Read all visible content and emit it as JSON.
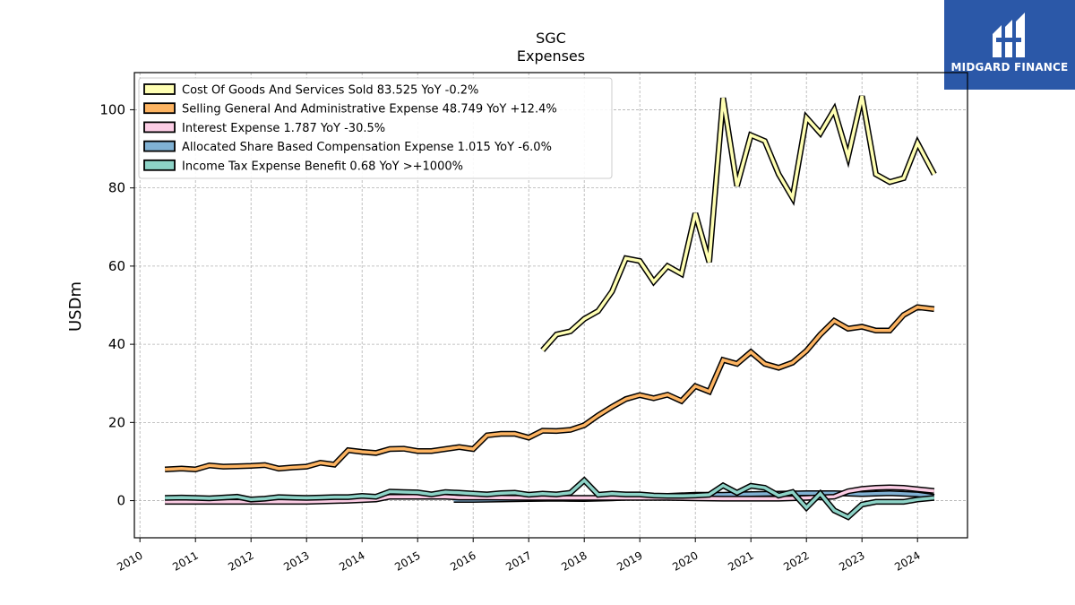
{
  "brand": {
    "name": "MIDGARD FINANCE",
    "bg_color": "#2b58a8"
  },
  "chart_data": {
    "type": "line",
    "title": "SGC",
    "subtitle": "Expenses",
    "xlabel": "",
    "ylabel": "USDm",
    "xlim": [
      2009.9,
      2024.9
    ],
    "ylim": [
      -9.5,
      109.5
    ],
    "x_ticks": [
      "2010",
      "2011",
      "2012",
      "2013",
      "2014",
      "2015",
      "2016",
      "2017",
      "2018",
      "2019",
      "2020",
      "2021",
      "2022",
      "2023",
      "2024"
    ],
    "y_ticks": [
      "0",
      "20",
      "40",
      "60",
      "80",
      "100"
    ],
    "grid": true,
    "legend_position": "top-left",
    "series": [
      {
        "name": "Cost Of Goods And Services Sold",
        "legend": "Cost Of Goods And Services Sold  83.525 YoY -0.2%",
        "color": "#ffffb3",
        "points": [
          [
            2017.25,
            38.5
          ],
          [
            2017.5,
            42.5
          ],
          [
            2017.75,
            43.3
          ],
          [
            2018.0,
            46.5
          ],
          [
            2018.25,
            48.5
          ],
          [
            2018.5,
            53.5
          ],
          [
            2018.75,
            62.0
          ],
          [
            2019.0,
            61.3
          ],
          [
            2019.25,
            56.0
          ],
          [
            2019.5,
            60.0
          ],
          [
            2019.75,
            58.0
          ],
          [
            2020.0,
            73.5
          ],
          [
            2020.25,
            61.0
          ],
          [
            2020.5,
            103.0
          ],
          [
            2020.75,
            80.5
          ],
          [
            2021.0,
            93.5
          ],
          [
            2021.25,
            92.0
          ],
          [
            2021.5,
            83.5
          ],
          [
            2021.75,
            77.5
          ],
          [
            2022.0,
            98.0
          ],
          [
            2022.25,
            94.0
          ],
          [
            2022.5,
            100.0
          ],
          [
            2022.75,
            88.0
          ],
          [
            2023.0,
            103.5
          ],
          [
            2023.25,
            83.5
          ],
          [
            2023.5,
            81.5
          ],
          [
            2023.75,
            82.5
          ],
          [
            2024.0,
            91.5
          ],
          [
            2024.3,
            83.5
          ]
        ]
      },
      {
        "name": "Selling General And Administrative Expense",
        "legend": "Selling General And Administrative Expense  48.749 YoY +12.4%",
        "color": "#fdb462",
        "points": [
          [
            2010.45,
            8.0
          ],
          [
            2010.75,
            8.2
          ],
          [
            2011.0,
            8.0
          ],
          [
            2011.25,
            9.0
          ],
          [
            2011.5,
            8.7
          ],
          [
            2011.75,
            8.8
          ],
          [
            2012.0,
            8.9
          ],
          [
            2012.25,
            9.1
          ],
          [
            2012.5,
            8.2
          ],
          [
            2012.75,
            8.5
          ],
          [
            2013.0,
            8.7
          ],
          [
            2013.25,
            9.7
          ],
          [
            2013.5,
            9.2
          ],
          [
            2013.75,
            12.9
          ],
          [
            2014.0,
            12.5
          ],
          [
            2014.25,
            12.2
          ],
          [
            2014.5,
            13.2
          ],
          [
            2014.75,
            13.3
          ],
          [
            2015.0,
            12.7
          ],
          [
            2015.25,
            12.7
          ],
          [
            2015.5,
            13.2
          ],
          [
            2015.75,
            13.7
          ],
          [
            2016.0,
            13.2
          ],
          [
            2016.25,
            16.7
          ],
          [
            2016.5,
            17.1
          ],
          [
            2016.75,
            17.1
          ],
          [
            2017.0,
            16.1
          ],
          [
            2017.25,
            17.9
          ],
          [
            2017.5,
            17.8
          ],
          [
            2017.75,
            18.1
          ],
          [
            2018.0,
            19.3
          ],
          [
            2018.25,
            21.8
          ],
          [
            2018.5,
            24.0
          ],
          [
            2018.75,
            26.0
          ],
          [
            2019.0,
            27.0
          ],
          [
            2019.25,
            26.2
          ],
          [
            2019.5,
            27.1
          ],
          [
            2019.75,
            25.5
          ],
          [
            2020.0,
            29.3
          ],
          [
            2020.25,
            27.9
          ],
          [
            2020.5,
            36.0
          ],
          [
            2020.75,
            35.0
          ],
          [
            2021.0,
            38.0
          ],
          [
            2021.25,
            35.0
          ],
          [
            2021.5,
            34.0
          ],
          [
            2021.75,
            35.3
          ],
          [
            2022.0,
            38.3
          ],
          [
            2022.25,
            42.5
          ],
          [
            2022.5,
            46.0
          ],
          [
            2022.75,
            44.0
          ],
          [
            2023.0,
            44.5
          ],
          [
            2023.25,
            43.5
          ],
          [
            2023.5,
            43.5
          ],
          [
            2023.75,
            47.5
          ],
          [
            2024.0,
            49.5
          ],
          [
            2024.3,
            49.0
          ]
        ]
      },
      {
        "name": "Interest Expense",
        "legend": "Interest Expense  1.787 YoY -30.5%",
        "color": "#fccde5",
        "points": [
          [
            2010.45,
            -0.3
          ],
          [
            2011.0,
            -0.3
          ],
          [
            2012.0,
            -0.3
          ],
          [
            2013.0,
            -0.3
          ],
          [
            2013.75,
            0.0
          ],
          [
            2014.25,
            0.3
          ],
          [
            2014.5,
            1.0
          ],
          [
            2015.0,
            1.0
          ],
          [
            2015.5,
            1.0
          ],
          [
            2015.75,
            0.8
          ],
          [
            2016.25,
            0.8
          ],
          [
            2017.0,
            0.7
          ],
          [
            2017.5,
            0.7
          ],
          [
            2018.0,
            0.7
          ],
          [
            2018.5,
            0.7
          ],
          [
            2019.0,
            0.7
          ],
          [
            2019.5,
            0.7
          ],
          [
            2020.0,
            0.6
          ],
          [
            2020.5,
            0.5
          ],
          [
            2021.0,
            0.5
          ],
          [
            2021.5,
            0.5
          ],
          [
            2022.0,
            0.7
          ],
          [
            2022.5,
            1.0
          ],
          [
            2022.75,
            2.4
          ],
          [
            2023.0,
            3.0
          ],
          [
            2023.25,
            3.3
          ],
          [
            2023.5,
            3.4
          ],
          [
            2023.75,
            3.3
          ],
          [
            2024.0,
            2.9
          ],
          [
            2024.3,
            2.5
          ]
        ]
      },
      {
        "name": "Allocated Share Based Compensation Expense",
        "legend": "Allocated Share Based Compensation Expense  1.015 YoY -6.0%",
        "color": "#80b1d3",
        "points": [
          [
            2015.65,
            0.2
          ],
          [
            2016.0,
            0.2
          ],
          [
            2016.5,
            0.3
          ],
          [
            2017.0,
            0.4
          ],
          [
            2017.5,
            0.5
          ],
          [
            2018.0,
            0.4
          ],
          [
            2018.5,
            0.6
          ],
          [
            2019.0,
            0.9
          ],
          [
            2019.5,
            1.2
          ],
          [
            2020.0,
            1.5
          ],
          [
            2020.5,
            1.5
          ],
          [
            2021.0,
            1.7
          ],
          [
            2021.5,
            1.8
          ],
          [
            2022.0,
            1.9
          ],
          [
            2022.5,
            1.9
          ],
          [
            2023.0,
            1.7
          ],
          [
            2023.5,
            1.9
          ],
          [
            2024.0,
            1.6
          ],
          [
            2024.3,
            1.0
          ]
        ]
      },
      {
        "name": "Income Tax Expense Benefit",
        "legend": "Income Tax Expense Benefit  0.68 YoY >+1000%",
        "color": "#8dd3c7",
        "points": [
          [
            2010.45,
            0.7
          ],
          [
            2010.75,
            0.8
          ],
          [
            2011.0,
            0.7
          ],
          [
            2011.25,
            0.6
          ],
          [
            2011.5,
            0.8
          ],
          [
            2011.75,
            1.0
          ],
          [
            2012.0,
            0.3
          ],
          [
            2012.25,
            0.5
          ],
          [
            2012.5,
            0.9
          ],
          [
            2012.75,
            0.8
          ],
          [
            2013.0,
            0.7
          ],
          [
            2013.25,
            0.8
          ],
          [
            2013.5,
            0.9
          ],
          [
            2013.75,
            0.9
          ],
          [
            2014.0,
            1.2
          ],
          [
            2014.25,
            1.0
          ],
          [
            2014.5,
            2.3
          ],
          [
            2014.75,
            2.2
          ],
          [
            2015.0,
            2.1
          ],
          [
            2015.25,
            1.6
          ],
          [
            2015.5,
            2.2
          ],
          [
            2015.75,
            2.0
          ],
          [
            2016.0,
            1.8
          ],
          [
            2016.25,
            1.6
          ],
          [
            2016.5,
            1.9
          ],
          [
            2016.75,
            2.0
          ],
          [
            2017.0,
            1.5
          ],
          [
            2017.25,
            1.8
          ],
          [
            2017.5,
            1.6
          ],
          [
            2017.75,
            2.0
          ],
          [
            2018.0,
            5.2
          ],
          [
            2018.25,
            1.5
          ],
          [
            2018.5,
            1.8
          ],
          [
            2018.75,
            1.6
          ],
          [
            2019.0,
            1.6
          ],
          [
            2019.25,
            1.3
          ],
          [
            2019.5,
            1.2
          ],
          [
            2019.75,
            1.2
          ],
          [
            2020.0,
            1.3
          ],
          [
            2020.25,
            1.5
          ],
          [
            2020.5,
            3.9
          ],
          [
            2020.75,
            2.0
          ],
          [
            2021.0,
            3.8
          ],
          [
            2021.25,
            3.3
          ],
          [
            2021.5,
            1.3
          ],
          [
            2021.75,
            2.2
          ],
          [
            2022.0,
            -1.8
          ],
          [
            2022.25,
            1.8
          ],
          [
            2022.5,
            -2.5
          ],
          [
            2022.75,
            -4.2
          ],
          [
            2023.0,
            -1.0
          ],
          [
            2023.25,
            -0.3
          ],
          [
            2023.5,
            -0.3
          ],
          [
            2023.75,
            -0.3
          ],
          [
            2024.0,
            0.3
          ],
          [
            2024.3,
            0.7
          ]
        ]
      }
    ]
  }
}
